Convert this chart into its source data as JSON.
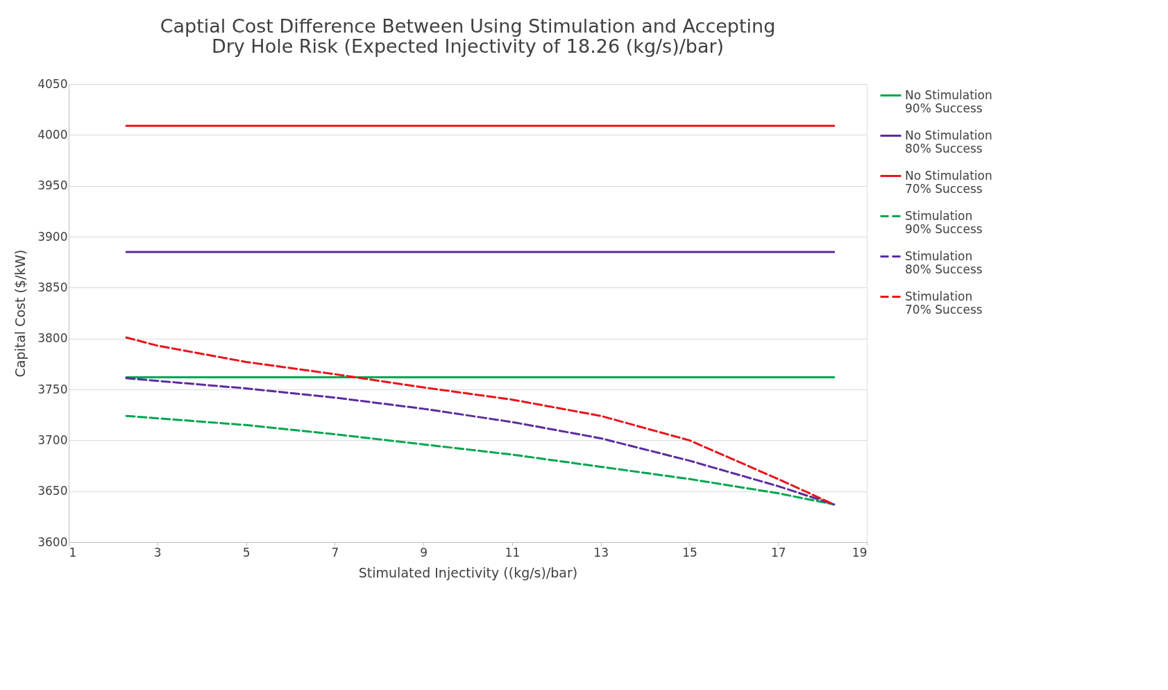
{
  "chart_data": {
    "type": "line",
    "title": "Captial Cost Difference Between Using Stimulation and Accepting Dry Hole Risk (Expected Injectivity of 18.26 (kg/s)/bar)",
    "xlabel": "Stimulated Injectivity ((kg/s)/bar)",
    "ylabel": "Capital Cost ($/kW)",
    "xlim": [
      1,
      19
    ],
    "xticks": [
      1,
      3,
      5,
      7,
      9,
      11,
      13,
      15,
      17,
      19
    ],
    "ylim": [
      3600,
      4050
    ],
    "yticks": [
      3600,
      3650,
      3700,
      3750,
      3800,
      3850,
      3900,
      3950,
      4000,
      4050
    ],
    "grid": "y",
    "legend": "right",
    "marker": "none",
    "series": [
      {
        "name": "No Stimulation\n90% Success",
        "color": "#00a650",
        "line_style": "solid",
        "x": [
          2.3,
          18.26
        ],
        "values": [
          3762,
          3762
        ]
      },
      {
        "name": "No Stimulation\n80% Success",
        "color": "#5b2c9f",
        "line_style": "solid",
        "x": [
          2.3,
          18.26
        ],
        "values": [
          3885,
          3885
        ]
      },
      {
        "name": "No Stimulation\n70% Success",
        "color": "#e8141b",
        "line_style": "solid",
        "x": [
          2.3,
          18.26
        ],
        "values": [
          4009,
          4009
        ]
      },
      {
        "name": "Stimulation\n90% Success",
        "color": "#00a650",
        "line_style": "dashed",
        "x": [
          2.3,
          5,
          7,
          9,
          11,
          13,
          15,
          17,
          18.26
        ],
        "values": [
          3724,
          3715,
          3706,
          3696,
          3686,
          3674,
          3662,
          3648,
          3637
        ]
      },
      {
        "name": "Stimulation\n80% Success",
        "color": "#5b2c9f",
        "line_style": "dashed",
        "x": [
          2.3,
          5,
          7,
          9,
          11,
          13,
          15,
          17,
          18.26
        ],
        "values": [
          3761,
          3751,
          3742,
          3731,
          3718,
          3702,
          3680,
          3655,
          3637
        ]
      },
      {
        "name": "Stimulation\n70% Success",
        "color": "#e8141b",
        "line_style": "dashed",
        "x": [
          2.3,
          3,
          5,
          7,
          9,
          11,
          13,
          15,
          17,
          18.26
        ],
        "values": [
          3801,
          3793,
          3777,
          3765,
          3752,
          3740,
          3724,
          3700,
          3662,
          3637
        ]
      }
    ]
  }
}
